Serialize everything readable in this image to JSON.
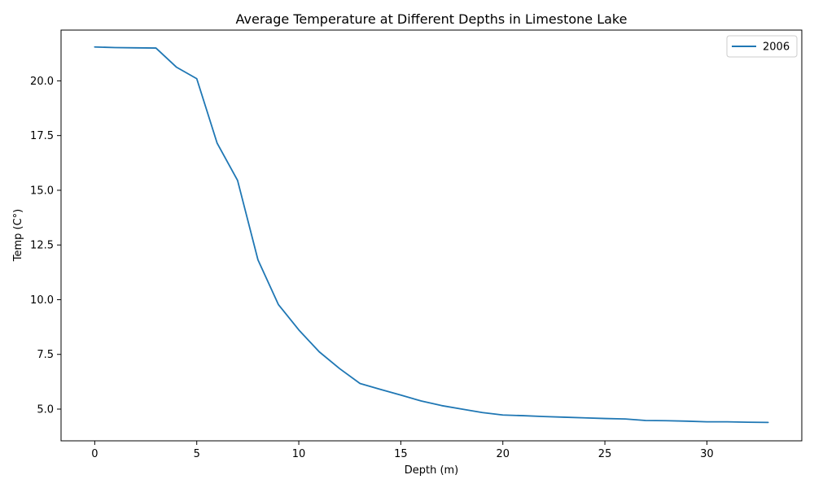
{
  "chart_data": {
    "type": "line",
    "title": "Average Temperature at Different Depths in Limestone Lake",
    "xlabel": "Depth (m)",
    "ylabel": "Temp (C°)",
    "xlim": [
      -1.65,
      34.65
    ],
    "ylim": [
      3.55,
      22.32
    ],
    "xticks": [
      0,
      5,
      10,
      15,
      20,
      25,
      30
    ],
    "xtick_labels": [
      "0",
      "5",
      "10",
      "15",
      "20",
      "25",
      "30"
    ],
    "yticks": [
      5.0,
      7.5,
      10.0,
      12.5,
      15.0,
      17.5,
      20.0
    ],
    "ytick_labels": [
      "5.0",
      "7.5",
      "10.0",
      "12.5",
      "15.0",
      "17.5",
      "20.0"
    ],
    "grid": false,
    "legend_position": "top-right",
    "series": [
      {
        "name": "2006",
        "color": "#1f77b4",
        "x": [
          0,
          1,
          2,
          3,
          4,
          5,
          6,
          7,
          8,
          9,
          10,
          11,
          12,
          13,
          14,
          15,
          16,
          17,
          18,
          19,
          20,
          21,
          22,
          23,
          24,
          25,
          26,
          27,
          28,
          29,
          30,
          31,
          32,
          33
        ],
        "y": [
          21.55,
          21.52,
          21.51,
          21.5,
          20.63,
          20.1,
          17.15,
          15.45,
          11.82,
          9.78,
          8.62,
          7.62,
          6.85,
          6.17,
          5.9,
          5.64,
          5.37,
          5.16,
          5.0,
          4.84,
          4.73,
          4.7,
          4.66,
          4.63,
          4.6,
          4.57,
          4.55,
          4.48,
          4.47,
          4.45,
          4.42,
          4.42,
          4.4,
          4.39
        ]
      }
    ]
  }
}
